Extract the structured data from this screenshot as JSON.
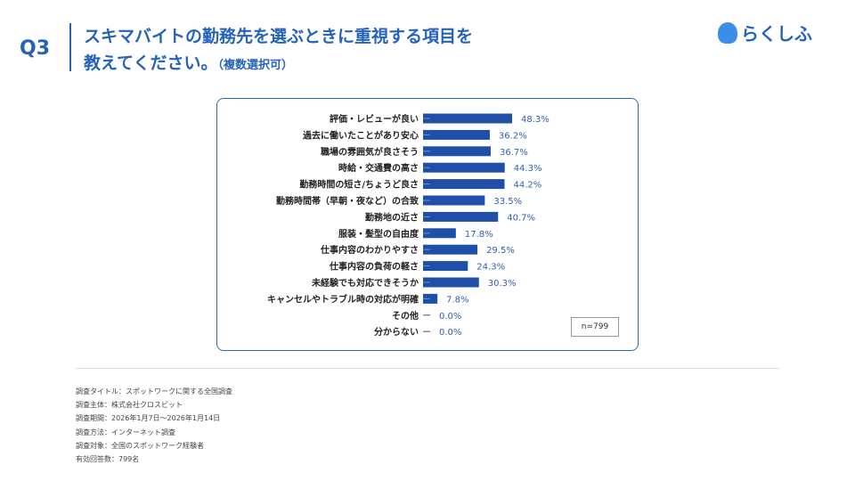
{
  "header": {
    "q_label": "Q3",
    "title_line1": "スキマバイトの勤務先を選ぶときに重視する項目を",
    "title_line2": "教えてください。",
    "title_sub": "（複数選択可）",
    "logo_text": "らくしふ"
  },
  "chart_data": {
    "type": "bar",
    "orientation": "horizontal",
    "xlim": [
      0,
      100
    ],
    "grid": false,
    "bar_color": "#1f4fa8",
    "label_color": "#2f5fb0",
    "categories": [
      "評価・レビューが良い",
      "過去に働いたことがあり安心",
      "職場の雰囲気が良さそう",
      "時給・交通費の高さ",
      "勤務時間の短さ/ちょうど良さ",
      "勤務時間帯（早朝・夜など）の合致",
      "勤務地の近さ",
      "服装・髪型の自由度",
      "仕事内容のわかりやすさ",
      "仕事内容の負荷の軽さ",
      "未経験でも対応できそうか",
      "キャンセルやトラブル時の対応が明確",
      "その他",
      "分からない"
    ],
    "values": [
      48.3,
      36.2,
      36.7,
      44.3,
      44.2,
      33.5,
      40.7,
      17.8,
      29.5,
      24.3,
      30.3,
      7.8,
      0.0,
      0.0
    ],
    "value_labels": [
      "48.3%",
      "36.2%",
      "36.7%",
      "44.3%",
      "44.2%",
      "33.5%",
      "40.7%",
      "17.8%",
      "29.5%",
      "24.3%",
      "30.3%",
      "7.8%",
      "0.0%",
      "0.0%"
    ],
    "annotation": "n=799"
  },
  "notes": [
    "調査タイトル：スポットワークに関する全国調査",
    "調査主体：株式会社クロスビット",
    "調査期間：2026年1月7日〜2026年1月14日",
    "調査方法：インターネット調査",
    "調査対象：全国のスポットワーク経験者",
    "有効回答数：799名"
  ]
}
